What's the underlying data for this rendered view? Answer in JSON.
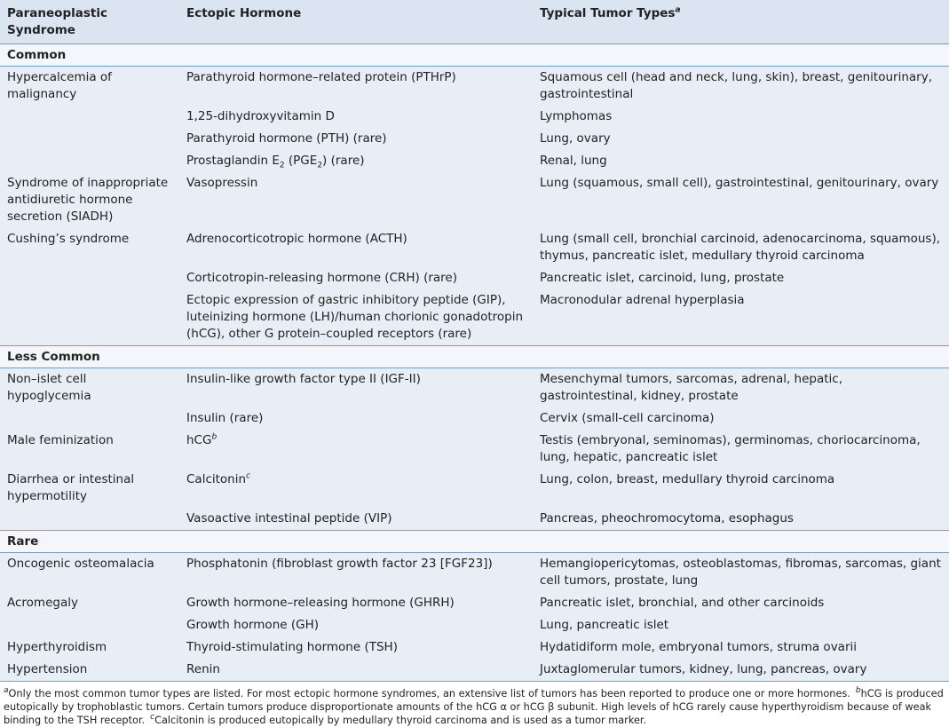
{
  "table": {
    "columns": [
      "Paraneoplastic Syndrome",
      "Ectopic Hormone",
      [
        "Typical Tumor Types",
        {
          "sup": "a"
        }
      ]
    ],
    "sections": [
      {
        "title": "Common",
        "rows": [
          [
            "Hypercalcemia of malignancy",
            "Parathyroid hormone–related protein (PTHrP)",
            "Squamous cell (head and neck, lung, skin), breast, genitourinary, gastrointestinal"
          ],
          [
            null,
            "1,25-dihydroxyvitamin D",
            "Lymphomas"
          ],
          [
            null,
            "Parathyroid hormone (PTH) (rare)",
            "Lung, ovary"
          ],
          [
            null,
            [
              "Prostaglandin E",
              {
                "sub": "2"
              },
              " (PGE",
              {
                "sub": "2"
              },
              ") (rare)"
            ],
            "Renal, lung"
          ],
          [
            "Syndrome of inappropriate antidiuretic hormone secretion (SIADH)",
            "Vasopressin",
            "Lung (squamous, small cell), gastrointestinal, genitourinary, ovary"
          ],
          [
            "Cushing’s syndrome",
            "Adrenocorticotropic hormone (ACTH)",
            "Lung (small cell, bronchial carcinoid, adenocarcinoma, squamous), thymus, pancreatic islet, medullary thyroid carcinoma"
          ],
          [
            null,
            "Corticotropin-releasing hormone (CRH) (rare)",
            "Pancreatic islet, carcinoid, lung, prostate"
          ],
          [
            null,
            "Ectopic expression of gastric inhibitory peptide (GIP), luteinizing hormone (LH)/human chorionic gonadotropin (hCG), other G protein–coupled receptors (rare)",
            "Macronodular adrenal hyperplasia"
          ]
        ]
      },
      {
        "title": "Less Common",
        "rows": [
          [
            "Non–islet cell hypoglycemia",
            "Insulin-like growth factor type II (IGF-II)",
            "Mesenchymal tumors, sarcomas, adrenal, hepatic, gastrointestinal, kidney, prostate"
          ],
          [
            null,
            "Insulin (rare)",
            "Cervix (small-cell carcinoma)"
          ],
          [
            "Male feminization",
            [
              "hCG",
              {
                "sup": "b"
              }
            ],
            "Testis (embryonal, seminomas), germinomas, choriocarcinoma, lung, hepatic, pancreatic islet"
          ],
          [
            "Diarrhea or intestinal hypermotility",
            [
              "Calcitonin",
              {
                "sup": "c"
              }
            ],
            "Lung, colon, breast, medullary thyroid carcinoma"
          ],
          [
            null,
            "Vasoactive intestinal peptide (VIP)",
            "Pancreas, pheochromocytoma, esophagus"
          ]
        ]
      },
      {
        "title": "Rare",
        "rows": [
          [
            "Oncogenic osteomalacia",
            "Phosphatonin (fibroblast growth factor 23 [FGF23])",
            "Hemangiopericytomas, osteoblastomas, fibromas, sarcomas, giant cell tumors, prostate, lung"
          ],
          [
            "Acromegaly",
            "Growth hormone–releasing hormone (GHRH)",
            "Pancreatic islet, bronchial, and other carcinoids"
          ],
          [
            null,
            "Growth hormone (GH)",
            "Lung, pancreatic islet"
          ],
          [
            "Hyperthyroidism",
            "Thyroid-stimulating hormone (TSH)",
            "Hydatidiform mole, embryonal tumors, struma ovarii"
          ],
          [
            "Hypertension",
            "Renin",
            "Juxtaglomerular tumors, kidney, lung, pancreas, ovary"
          ]
        ]
      }
    ]
  },
  "footnotes": [
    [
      {
        "sup": "a"
      },
      "Only the most common tumor types are listed. For most ectopic hormone syndromes, an extensive list of tumors has been reported to produce one or more hormones."
    ],
    [
      {
        "sup": "b"
      },
      "hCG is produced eutopically by trophoblastic tumors. Certain tumors produce disproportionate amounts of the hCG α or hCG β subunit. High levels of hCG rarely cause hyperthyroidism because of weak binding to the TSH receptor."
    ],
    [
      {
        "sup": "c"
      },
      "Calcitonin is produced eutopically by medullary thyroid carcinoma and is used as a tumor marker."
    ]
  ]
}
